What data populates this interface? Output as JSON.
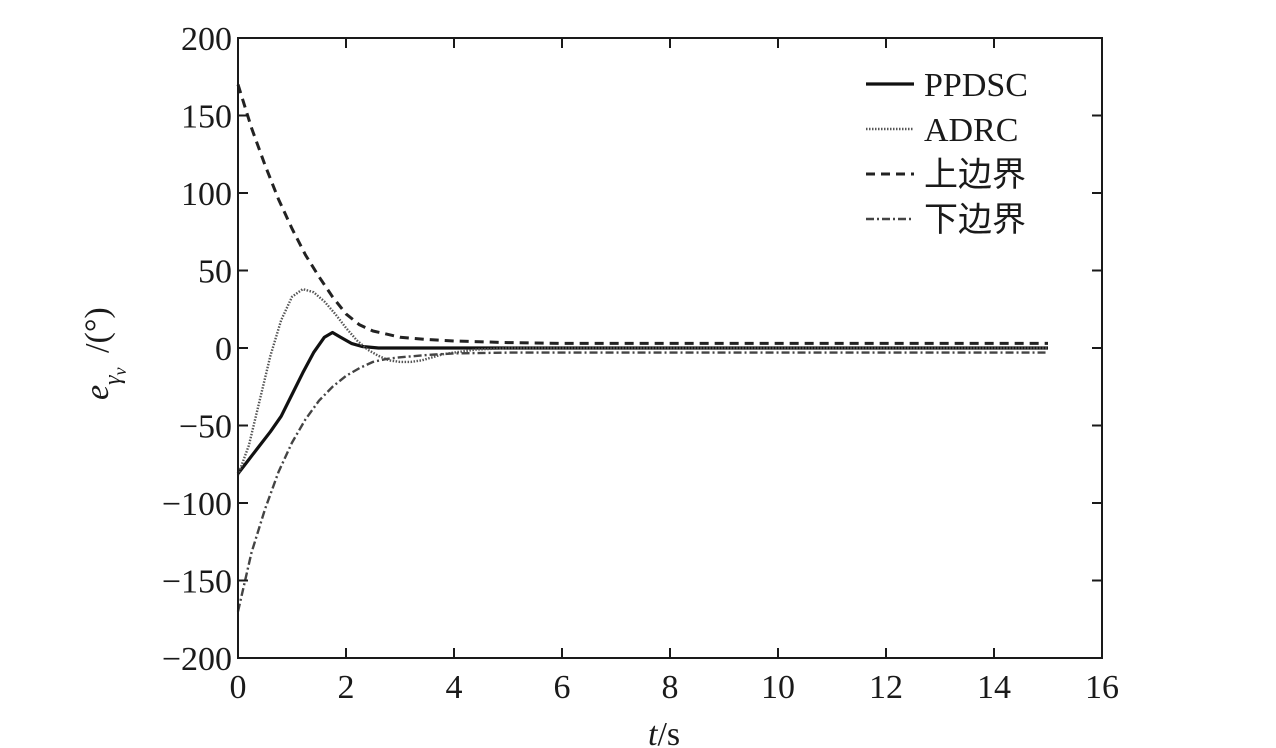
{
  "chart_data": {
    "type": "line",
    "xlabel": "t/s",
    "ylabel": "e_γv /(°)",
    "xlim": [
      0,
      16
    ],
    "ylim": [
      -200,
      200
    ],
    "x_ticks": [
      0,
      2,
      4,
      6,
      8,
      10,
      12,
      14,
      16
    ],
    "y_ticks": [
      200,
      150,
      100,
      50,
      0,
      -50,
      -100,
      -150,
      -200
    ],
    "x_tick_labels": [
      "0",
      "2",
      "4",
      "6",
      "8",
      "10",
      "12",
      "14",
      "16"
    ],
    "y_tick_labels": [
      "200",
      "150",
      "100",
      "50",
      "0",
      "−50",
      "−100",
      "−150",
      "−200"
    ],
    "legend_position": "top-right",
    "grid": false,
    "series": [
      {
        "name": "PPDSC",
        "style": "solid",
        "color": "#111111",
        "points": [
          [
            0,
            -81
          ],
          [
            0.2,
            -72
          ],
          [
            0.4,
            -63
          ],
          [
            0.6,
            -54
          ],
          [
            0.8,
            -44
          ],
          [
            1.0,
            -30
          ],
          [
            1.2,
            -16
          ],
          [
            1.4,
            -3
          ],
          [
            1.6,
            7
          ],
          [
            1.75,
            10
          ],
          [
            1.9,
            7
          ],
          [
            2.1,
            3
          ],
          [
            2.3,
            1
          ],
          [
            2.6,
            0
          ],
          [
            3,
            0
          ],
          [
            15,
            0
          ]
        ]
      },
      {
        "name": "ADRC",
        "style": "dotted",
        "color": "#555555",
        "points": [
          [
            0,
            -82
          ],
          [
            0.2,
            -63
          ],
          [
            0.4,
            -34
          ],
          [
            0.6,
            -5
          ],
          [
            0.8,
            18
          ],
          [
            1.0,
            33
          ],
          [
            1.2,
            38
          ],
          [
            1.4,
            36
          ],
          [
            1.6,
            30
          ],
          [
            1.8,
            22
          ],
          [
            2.0,
            13
          ],
          [
            2.2,
            5
          ],
          [
            2.4,
            -1
          ],
          [
            2.6,
            -5
          ],
          [
            2.8,
            -8
          ],
          [
            3.0,
            -9
          ],
          [
            3.2,
            -9
          ],
          [
            3.4,
            -8
          ],
          [
            3.6,
            -6
          ],
          [
            3.8,
            -4
          ],
          [
            4.0,
            -3
          ],
          [
            4.4,
            -1
          ],
          [
            5,
            0
          ],
          [
            15,
            0
          ]
        ]
      },
      {
        "name": "上边界",
        "style": "dashed",
        "color": "#222222",
        "points": [
          [
            0,
            170
          ],
          [
            0.25,
            142
          ],
          [
            0.5,
            118
          ],
          [
            0.75,
            96
          ],
          [
            1.0,
            77
          ],
          [
            1.25,
            60
          ],
          [
            1.5,
            46
          ],
          [
            1.75,
            33
          ],
          [
            2.0,
            22
          ],
          [
            2.25,
            15
          ],
          [
            2.5,
            11
          ],
          [
            2.75,
            9
          ],
          [
            3,
            7
          ],
          [
            3.5,
            5.5
          ],
          [
            4,
            4.5
          ],
          [
            5,
            3.5
          ],
          [
            6,
            3
          ],
          [
            8,
            3
          ],
          [
            15,
            3
          ]
        ]
      },
      {
        "name": "下边界",
        "style": "dashdot",
        "color": "#444444",
        "points": [
          [
            0,
            -170
          ],
          [
            0.25,
            -132
          ],
          [
            0.5,
            -104
          ],
          [
            0.75,
            -80
          ],
          [
            1.0,
            -61
          ],
          [
            1.25,
            -46
          ],
          [
            1.5,
            -34
          ],
          [
            1.75,
            -25
          ],
          [
            2.0,
            -18
          ],
          [
            2.25,
            -13
          ],
          [
            2.5,
            -9
          ],
          [
            2.75,
            -7
          ],
          [
            3,
            -6
          ],
          [
            3.5,
            -4.5
          ],
          [
            4,
            -3.5
          ],
          [
            5,
            -3
          ],
          [
            6,
            -3
          ],
          [
            8,
            -3
          ],
          [
            15,
            -3
          ]
        ]
      }
    ]
  }
}
